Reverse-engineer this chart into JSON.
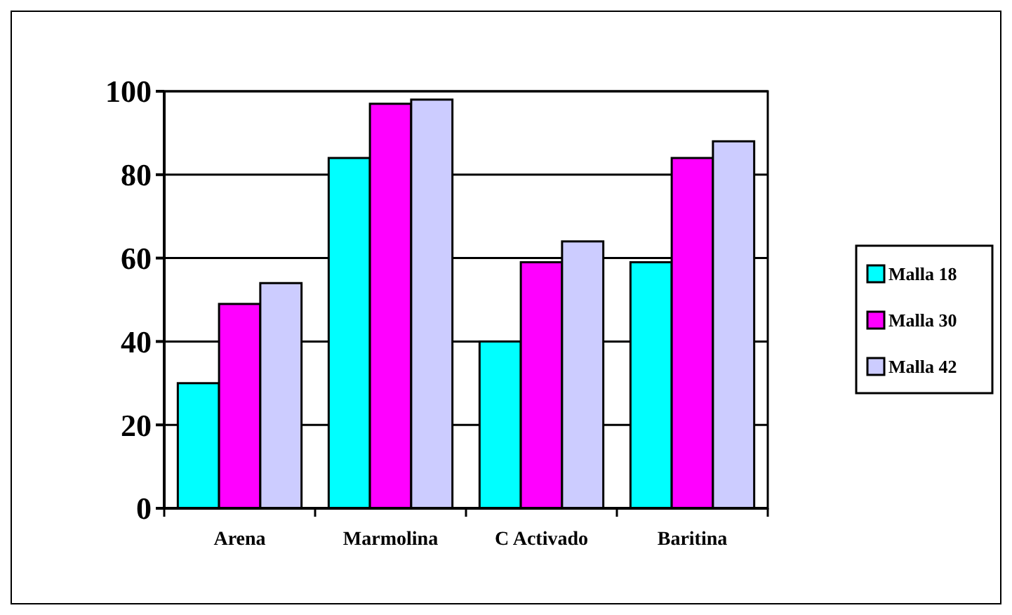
{
  "chart_data": {
    "type": "bar",
    "categories": [
      "Arena",
      "Marmolina",
      "C Activado",
      "Baritina"
    ],
    "series": [
      {
        "name": "Malla 18",
        "color": "#00ffff",
        "values": [
          30,
          84,
          40,
          59
        ]
      },
      {
        "name": "Malla 30",
        "color": "#ff00ff",
        "values": [
          49,
          97,
          59,
          84
        ]
      },
      {
        "name": "Malla 42",
        "color": "#ccccff",
        "values": [
          54,
          98,
          64,
          88
        ]
      }
    ],
    "ylim": [
      0,
      100
    ],
    "yticks": [
      0,
      20,
      40,
      60,
      80,
      100
    ],
    "grid": "y",
    "legend": "right"
  }
}
